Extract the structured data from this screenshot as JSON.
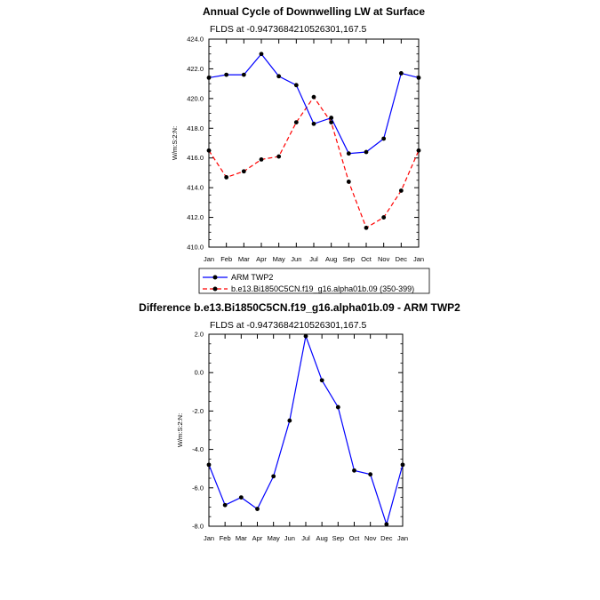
{
  "chart_data": [
    {
      "type": "line",
      "title": "Annual Cycle of Downwelling LW at Surface",
      "subtitle": "FLDS at -0.9473684210526301,167.5",
      "ylabel": "W/m:S:2:N:",
      "xlabel": "",
      "categories": [
        "Jan",
        "Feb",
        "Mar",
        "Apr",
        "May",
        "Jun",
        "Jul",
        "Aug",
        "Sep",
        "Oct",
        "Nov",
        "Dec",
        "Jan"
      ],
      "ylim": [
        410.0,
        424.0
      ],
      "yticks": [
        "410.0",
        "412.0",
        "414.0",
        "416.0",
        "418.0",
        "420.0",
        "422.0",
        "424.0"
      ],
      "grid": false,
      "legend_position": "bottom",
      "series": [
        {
          "name": "ARM TWP2",
          "color": "#0000ff",
          "line_style": "solid",
          "values": [
            421.4,
            421.6,
            421.6,
            423.0,
            421.5,
            420.9,
            418.3,
            418.7,
            416.3,
            416.4,
            417.3,
            421.7,
            421.4
          ]
        },
        {
          "name": "b.e13.Bi1850C5CN.f19_g16.alpha01b.09 (350-399)",
          "color": "#ff0000",
          "line_style": "dashed",
          "values": [
            416.5,
            414.7,
            415.1,
            415.9,
            416.1,
            418.4,
            420.1,
            418.4,
            414.4,
            411.3,
            412.0,
            413.8,
            416.5
          ]
        }
      ]
    },
    {
      "type": "line",
      "title": "Difference b.e13.Bi1850C5CN.f19_g16.alpha01b.09 - ARM TWP2",
      "subtitle": "FLDS at -0.9473684210526301,167.5",
      "ylabel": "W/m:S:2:N:",
      "xlabel": "",
      "categories": [
        "Jan",
        "Feb",
        "Mar",
        "Apr",
        "May",
        "Jun",
        "Jul",
        "Aug",
        "Sep",
        "Oct",
        "Nov",
        "Dec",
        "Jan"
      ],
      "ylim": [
        -8.0,
        2.0
      ],
      "yticks": [
        "-8.0",
        "-6.0",
        "-4.0",
        "-2.0",
        "0.0",
        "2.0"
      ],
      "grid": false,
      "series": [
        {
          "color": "#0000ff",
          "line_style": "solid",
          "values": [
            -4.8,
            -6.9,
            -6.5,
            -7.1,
            -5.4,
            -2.5,
            1.9,
            -0.4,
            -1.8,
            -5.1,
            -5.3,
            -7.9,
            -4.8
          ]
        }
      ]
    }
  ]
}
